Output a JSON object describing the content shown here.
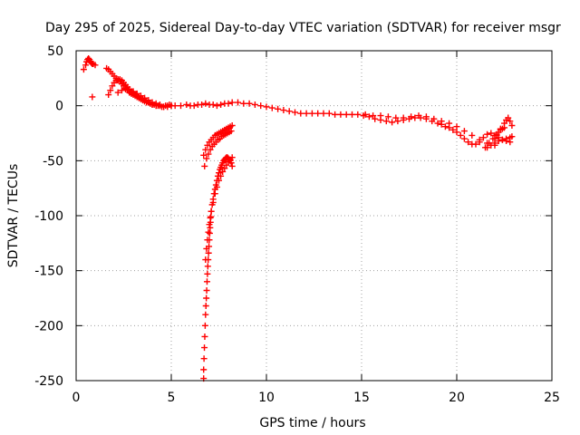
{
  "chart_data": {
    "type": "scatter",
    "title": "Day 295 of 2025, Sidereal Day-to-day VTEC variation (SDTVAR) for receiver msgr",
    "xlabel": "GPS time / hours",
    "ylabel": "SDTVAR / TECUs",
    "xlim": [
      0,
      25
    ],
    "ylim": [
      -250,
      50
    ],
    "xticks": [
      0,
      5,
      10,
      15,
      20,
      25
    ],
    "yticks": [
      -250,
      -200,
      -150,
      -100,
      -50,
      0,
      50
    ],
    "grid": true,
    "marker": "+",
    "color": "#ff0000",
    "series": [
      {
        "name": "SDTVAR",
        "x": [
          0.4,
          0.5,
          0.55,
          0.6,
          0.65,
          0.7,
          0.75,
          0.8,
          0.85,
          0.9,
          1.0,
          0.85,
          1.6,
          1.7,
          1.8,
          1.9,
          2.0,
          2.1,
          2.2,
          2.3,
          2.4,
          2.5,
          2.6,
          2.7,
          2.8,
          2.9,
          3.0,
          3.1,
          3.2,
          3.3,
          3.4,
          3.5,
          3.6,
          3.7,
          3.8,
          3.9,
          4.0,
          4.1,
          4.2,
          4.3,
          4.4,
          4.5,
          4.6,
          4.7,
          4.8,
          4.9,
          5.0,
          5.2,
          5.5,
          5.8,
          6.0,
          1.7,
          1.8,
          1.9,
          2.0,
          2.1,
          2.2,
          2.3,
          2.4,
          2.5,
          2.6,
          2.7,
          2.8,
          2.9,
          3.0,
          3.1,
          3.2,
          3.3,
          3.4,
          3.5,
          3.6,
          3.7,
          3.8,
          3.9,
          4.0,
          4.2,
          4.4,
          4.6,
          4.8,
          5.0,
          2.2,
          2.4,
          2.6,
          2.8,
          3.0,
          3.2,
          3.4,
          3.6,
          3.8,
          4.0,
          4.2,
          4.4,
          6.2,
          6.4,
          6.6,
          6.8,
          7.0,
          7.2,
          7.4,
          7.6,
          7.8,
          8.0,
          8.2,
          8.5,
          8.8,
          9.1,
          9.4,
          9.7,
          10.0,
          10.3,
          10.6,
          10.9,
          11.2,
          11.5,
          11.8,
          12.1,
          12.4,
          12.7,
          13.0,
          13.3,
          13.6,
          13.9,
          14.2,
          14.5,
          14.8,
          15.1,
          15.4,
          15.7,
          16.0,
          16.3,
          16.6,
          16.9,
          17.2,
          17.5,
          17.8,
          18.1,
          18.4,
          18.7,
          19.0,
          19.2,
          19.4,
          19.6,
          19.8,
          20.0,
          20.2,
          20.4,
          20.6,
          20.8,
          21.0,
          21.2,
          21.4,
          21.6,
          21.8,
          22.0,
          22.2,
          22.4,
          22.6,
          22.8,
          15.2,
          15.6,
          16.0,
          16.4,
          16.8,
          17.2,
          17.6,
          18.0,
          18.4,
          18.8,
          19.2,
          19.6,
          20.0,
          20.4,
          20.8,
          21.2,
          21.6,
          22.0,
          6.7,
          6.8,
          6.9,
          7.0,
          7.1,
          7.2,
          7.3,
          7.4,
          7.5,
          7.6,
          7.7,
          7.8,
          7.9,
          8.0,
          8.1,
          8.2,
          6.75,
          6.85,
          6.95,
          7.05,
          7.15,
          7.25,
          7.35,
          7.45,
          7.55,
          7.65,
          7.75,
          7.85,
          7.95,
          8.05,
          8.15,
          6.7,
          6.7,
          6.72,
          6.74,
          6.76,
          6.78,
          6.8,
          6.82,
          6.84,
          6.86,
          6.88,
          6.9,
          6.92,
          6.94,
          6.96,
          6.98,
          7.0,
          7.02,
          7.04,
          7.06,
          7.08,
          7.1,
          7.15,
          7.2,
          7.25,
          7.3,
          7.35,
          7.4,
          7.45,
          7.5,
          7.55,
          7.6,
          7.65,
          7.7,
          7.75,
          7.8,
          7.85,
          7.9,
          7.95,
          8.0,
          8.05,
          8.1,
          8.15,
          8.2,
          6.8,
          6.85,
          6.9,
          6.95,
          7.0,
          7.05,
          7.1,
          7.2,
          7.3,
          7.4,
          7.5,
          7.6,
          7.7,
          7.8,
          7.9,
          8.0,
          8.1,
          8.2,
          21.5,
          21.7,
          21.9,
          22.1,
          22.3,
          22.5,
          22.6,
          22.7,
          22.8,
          22.9,
          21.6,
          21.8,
          22.0,
          22.2,
          22.4,
          22.6,
          22.8,
          22.9,
          22.0,
          22.1,
          22.2,
          22.3,
          22.4,
          22.5
        ],
        "y": [
          33,
          37,
          40,
          42,
          43,
          42,
          40,
          39,
          38,
          38,
          37,
          8,
          34,
          33,
          31,
          29,
          27,
          25,
          23,
          22,
          20,
          18,
          16,
          14,
          12,
          11,
          10,
          9,
          8,
          7,
          6,
          5,
          4,
          3,
          3,
          2,
          1,
          1,
          0,
          0,
          0,
          -1,
          -1,
          0,
          0,
          1,
          0,
          0,
          0,
          1,
          0,
          10,
          14,
          18,
          21,
          23,
          24,
          24,
          23,
          21,
          19,
          17,
          15,
          13,
          12,
          10,
          9,
          8,
          7,
          6,
          5,
          4,
          3,
          2,
          1,
          0,
          0,
          -1,
          -1,
          0,
          12,
          14,
          15,
          14,
          13,
          11,
          9,
          7,
          5,
          3,
          2,
          1,
          0,
          1,
          1,
          2,
          1,
          1,
          0,
          1,
          2,
          2,
          3,
          3,
          2,
          2,
          1,
          0,
          -1,
          -2,
          -3,
          -4,
          -5,
          -6,
          -7,
          -7,
          -7,
          -7,
          -7,
          -7,
          -8,
          -8,
          -8,
          -8,
          -8,
          -9,
          -10,
          -12,
          -13,
          -14,
          -15,
          -14,
          -13,
          -12,
          -11,
          -11,
          -12,
          -14,
          -16,
          -17,
          -19,
          -20,
          -22,
          -24,
          -27,
          -30,
          -33,
          -35,
          -35,
          -33,
          -29,
          -26,
          -25,
          -27,
          -29,
          -31,
          -32,
          -33,
          -8,
          -9,
          -9,
          -10,
          -11,
          -11,
          -10,
          -9,
          -10,
          -12,
          -14,
          -16,
          -19,
          -23,
          -27,
          -31,
          -34,
          -36,
          -45,
          -40,
          -36,
          -33,
          -31,
          -29,
          -27,
          -26,
          -25,
          -24,
          -23,
          -22,
          -21,
          -20,
          -19,
          -18,
          -55,
          -48,
          -44,
          -40,
          -37,
          -35,
          -33,
          -31,
          -30,
          -28,
          -27,
          -26,
          -25,
          -24,
          -23,
          -248,
          -240,
          -230,
          -220,
          -210,
          -200,
          -190,
          -182,
          -175,
          -168,
          -160,
          -153,
          -146,
          -140,
          -134,
          -128,
          -122,
          -116,
          -111,
          -106,
          -101,
          -96,
          -90,
          -85,
          -80,
          -76,
          -72,
          -68,
          -64,
          -61,
          -58,
          -56,
          -54,
          -52,
          -50,
          -49,
          -48,
          -47,
          -47,
          -48,
          -49,
          -50,
          -52,
          -55,
          -140,
          -130,
          -122,
          -115,
          -108,
          -102,
          -96,
          -88,
          -80,
          -74,
          -68,
          -64,
          -60,
          -57,
          -54,
          -51,
          -49,
          -47,
          -38,
          -34,
          -30,
          -26,
          -21,
          -16,
          -13,
          -11,
          -14,
          -18,
          -38,
          -36,
          -34,
          -32,
          -31,
          -30,
          -29,
          -28,
          -30,
          -27,
          -24,
          -22,
          -21,
          -20
        ]
      }
    ]
  }
}
